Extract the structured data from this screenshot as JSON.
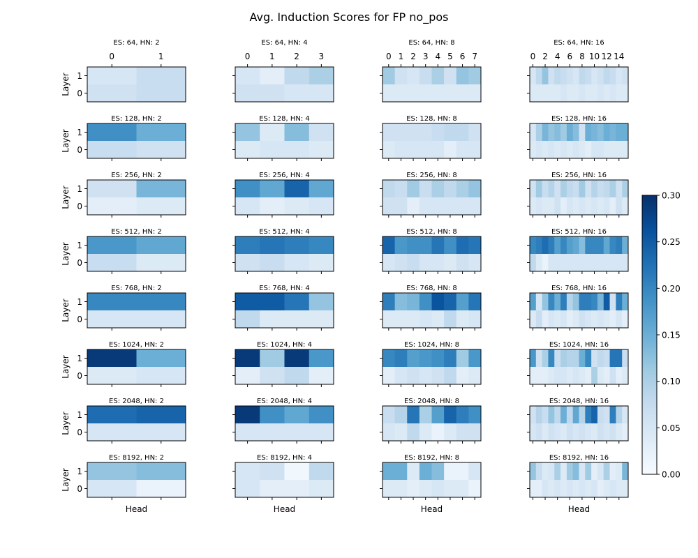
{
  "chart_data": {
    "type": "heatmap",
    "title": "Avg. Induction Scores for FP no_pos",
    "xlabel": "Head",
    "ylabel": "Layer",
    "colormap": "Blues",
    "colorbar": {
      "min": 0.0,
      "max": 0.3,
      "ticks": [
        "0.00",
        "0.05",
        "0.10",
        "0.15",
        "0.20",
        "0.25",
        "0.30"
      ],
      "placement": "right"
    },
    "layer_labels": [
      "1",
      "0"
    ],
    "head_tick_labels": {
      "2": [
        "0",
        "1"
      ],
      "4": [
        "0",
        "1",
        "2",
        "3"
      ],
      "8": [
        "0",
        "1",
        "2",
        "3",
        "4",
        "5",
        "6",
        "7"
      ],
      "16": [
        "0",
        "2",
        "4",
        "6",
        "8",
        "10",
        "12",
        "14"
      ]
    },
    "panels": [
      {
        "title": "ES: 64, HN: 2",
        "es": 64,
        "hn": 2,
        "values": [
          [
            0.05,
            0.07
          ],
          [
            0.06,
            0.07
          ]
        ]
      },
      {
        "title": "ES: 64, HN: 4",
        "es": 64,
        "hn": 4,
        "values": [
          [
            0.05,
            0.03,
            0.08,
            0.1
          ],
          [
            0.06,
            0.06,
            0.05,
            0.05
          ]
        ]
      },
      {
        "title": "ES: 64, HN: 8",
        "es": 64,
        "hn": 8,
        "values": [
          [
            0.11,
            0.06,
            0.05,
            0.07,
            0.1,
            0.06,
            0.12,
            0.11
          ],
          [
            0.04,
            0.04,
            0.04,
            0.04,
            0.04,
            0.04,
            0.04,
            0.04
          ]
        ]
      },
      {
        "title": "ES: 64, HN: 16",
        "es": 64,
        "hn": 16,
        "values": [
          [
            0.05,
            0.08,
            0.12,
            0.06,
            0.08,
            0.07,
            0.06,
            0.05,
            0.08,
            0.07,
            0.05,
            0.06,
            0.08,
            0.07,
            0.05,
            0.06
          ],
          [
            0.04,
            0.04,
            0.04,
            0.04,
            0.04,
            0.05,
            0.04,
            0.04,
            0.05,
            0.04,
            0.04,
            0.05,
            0.04,
            0.05,
            0.04,
            0.04
          ]
        ]
      },
      {
        "title": "ES: 128, HN: 2",
        "es": 128,
        "hn": 2,
        "values": [
          [
            0.19,
            0.15
          ],
          [
            0.07,
            0.06
          ]
        ]
      },
      {
        "title": "ES: 128, HN: 4",
        "es": 128,
        "hn": 4,
        "values": [
          [
            0.12,
            0.04,
            0.13,
            0.06
          ],
          [
            0.04,
            0.05,
            0.05,
            0.04
          ]
        ]
      },
      {
        "title": "ES: 128, HN: 8",
        "es": 128,
        "hn": 8,
        "values": [
          [
            0.06,
            0.06,
            0.06,
            0.06,
            0.07,
            0.08,
            0.08,
            0.06
          ],
          [
            0.04,
            0.05,
            0.05,
            0.05,
            0.05,
            0.03,
            0.05,
            0.05
          ]
        ]
      },
      {
        "title": "ES: 128, HN: 16",
        "es": 128,
        "hn": 16,
        "values": [
          [
            0.05,
            0.1,
            0.14,
            0.12,
            0.13,
            0.11,
            0.15,
            0.13,
            0.06,
            0.15,
            0.14,
            0.13,
            0.15,
            0.14,
            0.15,
            0.15
          ],
          [
            0.04,
            0.05,
            0.04,
            0.05,
            0.04,
            0.05,
            0.04,
            0.05,
            0.04,
            0.03,
            0.05,
            0.05,
            0.04,
            0.04,
            0.04,
            0.04
          ]
        ]
      },
      {
        "title": "ES: 256, HN: 2",
        "es": 256,
        "hn": 2,
        "values": [
          [
            0.06,
            0.14
          ],
          [
            0.03,
            0.04
          ]
        ]
      },
      {
        "title": "ES: 256, HN: 4",
        "es": 256,
        "hn": 4,
        "values": [
          [
            0.19,
            0.16,
            0.24,
            0.16
          ],
          [
            0.05,
            0.03,
            0.04,
            0.05
          ]
        ]
      },
      {
        "title": "ES: 256, HN: 8",
        "es": 256,
        "hn": 8,
        "values": [
          [
            0.08,
            0.07,
            0.11,
            0.07,
            0.1,
            0.08,
            0.1,
            0.12
          ],
          [
            0.06,
            0.06,
            0.03,
            0.05,
            0.05,
            0.05,
            0.05,
            0.05
          ]
        ]
      },
      {
        "title": "ES: 256, HN: 16",
        "es": 256,
        "hn": 16,
        "values": [
          [
            0.06,
            0.11,
            0.07,
            0.09,
            0.06,
            0.1,
            0.08,
            0.07,
            0.11,
            0.06,
            0.09,
            0.07,
            0.08,
            0.1,
            0.06,
            0.1
          ],
          [
            0.04,
            0.05,
            0.04,
            0.04,
            0.06,
            0.03,
            0.05,
            0.04,
            0.05,
            0.04,
            0.05,
            0.04,
            0.05,
            0.03,
            0.06,
            0.04
          ]
        ]
      },
      {
        "title": "ES: 512, HN: 2",
        "es": 512,
        "hn": 2,
        "values": [
          [
            0.18,
            0.16
          ],
          [
            0.07,
            0.04
          ]
        ]
      },
      {
        "title": "ES: 512, HN: 4",
        "es": 512,
        "hn": 4,
        "values": [
          [
            0.21,
            0.22,
            0.21,
            0.2
          ],
          [
            0.06,
            0.07,
            0.05,
            0.04
          ]
        ]
      },
      {
        "title": "ES: 512, HN: 8",
        "es": 512,
        "hn": 8,
        "values": [
          [
            0.24,
            0.18,
            0.19,
            0.19,
            0.22,
            0.19,
            0.23,
            0.22
          ],
          [
            0.05,
            0.06,
            0.07,
            0.05,
            0.05,
            0.04,
            0.06,
            0.05
          ]
        ]
      },
      {
        "title": "ES: 512, HN: 16",
        "es": 512,
        "hn": 16,
        "values": [
          [
            0.2,
            0.21,
            0.23,
            0.21,
            0.17,
            0.2,
            0.17,
            0.16,
            0.13,
            0.2,
            0.2,
            0.2,
            0.16,
            0.2,
            0.21,
            0.15
          ],
          [
            0.08,
            0.04,
            0.02,
            0.05,
            0.05,
            0.05,
            0.05,
            0.05,
            0.05,
            0.05,
            0.05,
            0.05,
            0.05,
            0.05,
            0.05,
            0.05
          ]
        ]
      },
      {
        "title": "ES: 768, HN: 2",
        "es": 768,
        "hn": 2,
        "values": [
          [
            0.2,
            0.2
          ],
          [
            0.05,
            0.05
          ]
        ]
      },
      {
        "title": "ES: 768, HN: 4",
        "es": 768,
        "hn": 4,
        "values": [
          [
            0.25,
            0.25,
            0.22,
            0.12
          ],
          [
            0.08,
            0.04,
            0.04,
            0.04
          ]
        ]
      },
      {
        "title": "ES: 768, HN: 8",
        "es": 768,
        "hn": 8,
        "values": [
          [
            0.21,
            0.13,
            0.14,
            0.19,
            0.26,
            0.24,
            0.17,
            0.22
          ],
          [
            0.04,
            0.04,
            0.04,
            0.05,
            0.04,
            0.08,
            0.04,
            0.05
          ]
        ]
      },
      {
        "title": "ES: 768, HN: 16",
        "es": 768,
        "hn": 16,
        "values": [
          [
            0.17,
            0.05,
            0.12,
            0.2,
            0.15,
            0.21,
            0.09,
            0.12,
            0.21,
            0.21,
            0.2,
            0.14,
            0.25,
            0.06,
            0.21,
            0.15
          ],
          [
            0.04,
            0.07,
            0.03,
            0.05,
            0.04,
            0.05,
            0.03,
            0.04,
            0.06,
            0.05,
            0.04,
            0.05,
            0.04,
            0.03,
            0.05,
            0.03
          ]
        ]
      },
      {
        "title": "ES: 1024, HN: 2",
        "es": 1024,
        "hn": 2,
        "values": [
          [
            0.29,
            0.15
          ],
          [
            0.04,
            0.05
          ]
        ]
      },
      {
        "title": "ES: 1024, HN: 4",
        "es": 1024,
        "hn": 4,
        "values": [
          [
            0.29,
            0.11,
            0.29,
            0.18
          ],
          [
            0.03,
            0.06,
            0.08,
            0.03
          ]
        ]
      },
      {
        "title": "ES: 1024, HN: 8",
        "es": 1024,
        "hn": 8,
        "values": [
          [
            0.2,
            0.21,
            0.17,
            0.18,
            0.19,
            0.21,
            0.11,
            0.18
          ],
          [
            0.03,
            0.05,
            0.06,
            0.05,
            0.06,
            0.08,
            0.03,
            0.04
          ]
        ]
      },
      {
        "title": "ES: 1024, HN: 16",
        "es": 1024,
        "hn": 16,
        "values": [
          [
            0.18,
            0.06,
            0.1,
            0.2,
            0.07,
            0.1,
            0.09,
            0.09,
            0.15,
            0.2,
            0.06,
            0.08,
            0.07,
            0.22,
            0.22,
            0.07
          ],
          [
            0.03,
            0.03,
            0.03,
            0.04,
            0.05,
            0.05,
            0.04,
            0.05,
            0.04,
            0.03,
            0.1,
            0.04,
            0.03,
            0.06,
            0.03,
            0.04
          ]
        ]
      },
      {
        "title": "ES: 2048, HN: 2",
        "es": 2048,
        "hn": 2,
        "values": [
          [
            0.23,
            0.24
          ],
          [
            0.05,
            0.05
          ]
        ]
      },
      {
        "title": "ES: 2048, HN: 4",
        "es": 2048,
        "hn": 4,
        "values": [
          [
            0.29,
            0.19,
            0.16,
            0.19
          ],
          [
            0.05,
            0.05,
            0.05,
            0.05
          ]
        ]
      },
      {
        "title": "ES: 2048, HN: 8",
        "es": 2048,
        "hn": 8,
        "values": [
          [
            0.07,
            0.09,
            0.22,
            0.1,
            0.17,
            0.24,
            0.21,
            0.19
          ],
          [
            0.05,
            0.04,
            0.08,
            0.04,
            0.02,
            0.04,
            0.06,
            0.06
          ]
        ]
      },
      {
        "title": "ES: 2048, HN: 16",
        "es": 2048,
        "hn": 16,
        "values": [
          [
            0.06,
            0.09,
            0.07,
            0.12,
            0.08,
            0.15,
            0.08,
            0.16,
            0.09,
            0.21,
            0.24,
            0.07,
            0.06,
            0.21,
            0.09,
            0.05
          ],
          [
            0.05,
            0.06,
            0.04,
            0.06,
            0.05,
            0.04,
            0.06,
            0.05,
            0.06,
            0.05,
            0.04,
            0.06,
            0.05,
            0.06,
            0.04,
            0.03
          ]
        ]
      },
      {
        "title": "ES: 8192, HN: 2",
        "es": 8192,
        "hn": 2,
        "values": [
          [
            0.12,
            0.13
          ],
          [
            0.05,
            0.02
          ]
        ]
      },
      {
        "title": "ES: 8192, HN: 4",
        "es": 8192,
        "hn": 4,
        "values": [
          [
            0.05,
            0.06,
            0.01,
            0.08
          ],
          [
            0.05,
            0.03,
            0.03,
            0.04
          ]
        ]
      },
      {
        "title": "ES: 8192, HN: 8",
        "es": 8192,
        "hn": 8,
        "values": [
          [
            0.15,
            0.15,
            0.04,
            0.15,
            0.13,
            0.02,
            0.02,
            0.05
          ],
          [
            0.04,
            0.04,
            0.03,
            0.04,
            0.05,
            0.04,
            0.04,
            0.02
          ]
        ]
      },
      {
        "title": "ES: 8192, HN: 16",
        "es": 8192,
        "hn": 16,
        "values": [
          [
            0.12,
            0.07,
            0.04,
            0.05,
            0.1,
            0.04,
            0.11,
            0.13,
            0.05,
            0.11,
            0.03,
            0.05,
            0.1,
            0.03,
            0.04,
            0.14
          ],
          [
            0.03,
            0.03,
            0.05,
            0.04,
            0.05,
            0.04,
            0.05,
            0.04,
            0.05,
            0.04,
            0.05,
            0.03,
            0.04,
            0.05,
            0.04,
            0.04
          ]
        ]
      }
    ]
  }
}
